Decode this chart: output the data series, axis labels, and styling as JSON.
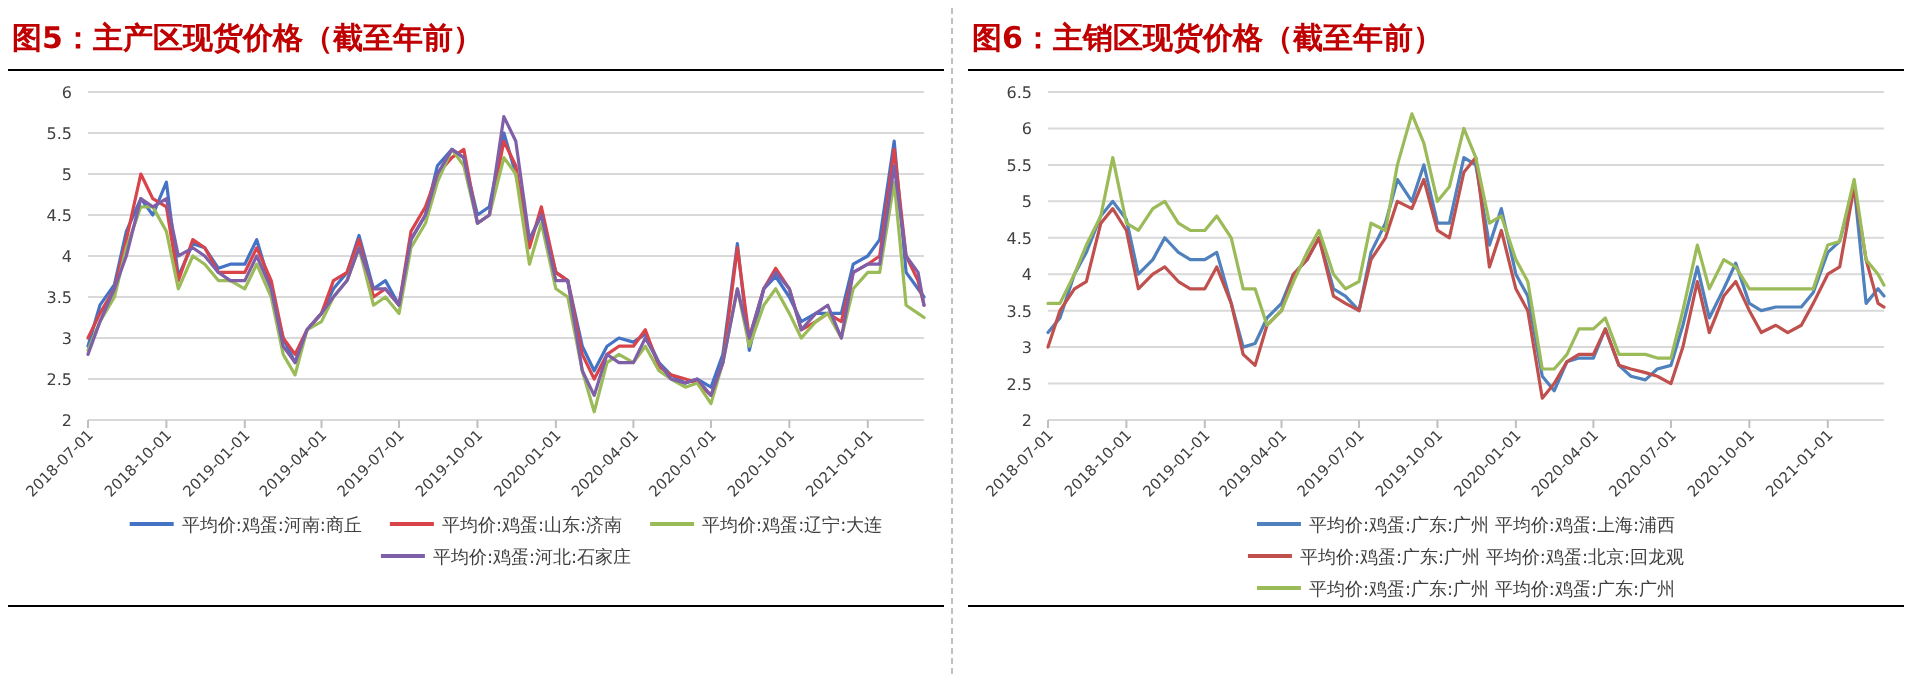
{
  "chart_data": [
    {
      "type": "line",
      "title": "图5：主产区现货价格（截至年前）",
      "grid": "y",
      "legend": "bottom",
      "x": [
        "2018-07-01",
        "2018-07-15",
        "2018-08-01",
        "2018-08-15",
        "2018-09-01",
        "2018-09-15",
        "2018-10-01",
        "2018-10-15",
        "2018-11-01",
        "2018-11-15",
        "2018-12-01",
        "2018-12-15",
        "2019-01-01",
        "2019-01-15",
        "2019-02-01",
        "2019-02-15",
        "2019-03-01",
        "2019-03-15",
        "2019-04-01",
        "2019-04-15",
        "2019-05-01",
        "2019-05-15",
        "2019-06-01",
        "2019-06-15",
        "2019-07-01",
        "2019-07-15",
        "2019-08-01",
        "2019-08-15",
        "2019-09-01",
        "2019-09-15",
        "2019-10-01",
        "2019-10-15",
        "2019-11-01",
        "2019-11-15",
        "2019-12-01",
        "2019-12-15",
        "2020-01-01",
        "2020-01-15",
        "2020-02-01",
        "2020-02-15",
        "2020-03-01",
        "2020-03-15",
        "2020-04-01",
        "2020-04-15",
        "2020-05-01",
        "2020-05-15",
        "2020-06-01",
        "2020-06-15",
        "2020-07-01",
        "2020-07-15",
        "2020-08-01",
        "2020-08-15",
        "2020-09-01",
        "2020-09-15",
        "2020-10-01",
        "2020-10-15",
        "2020-11-01",
        "2020-11-15",
        "2020-12-01",
        "2020-12-15",
        "2021-01-01",
        "2021-01-15",
        "2021-02-01",
        "2021-02-15",
        "2021-03-01",
        "2021-03-08"
      ],
      "xlim": [
        "2018-07-01",
        "2021-03-08"
      ],
      "xticks": [
        "2018-07-01",
        "2018-10-01",
        "2019-01-01",
        "2019-04-01",
        "2019-07-01",
        "2019-10-01",
        "2020-01-01",
        "2020-04-01",
        "2020-07-01",
        "2020-10-01",
        "2021-01-01"
      ],
      "ylim": [
        2,
        6
      ],
      "yticks": [
        2,
        2.5,
        3,
        3.5,
        4,
        4.5,
        5,
        5.5,
        6
      ],
      "series": [
        {
          "name": "平均价:鸡蛋:河南:商丘",
          "color": "#4472c4",
          "values": [
            2.9,
            3.4,
            3.65,
            4.3,
            4.7,
            4.5,
            4.9,
            3.75,
            4.15,
            4.1,
            3.85,
            3.9,
            3.9,
            4.2,
            3.6,
            3.0,
            2.7,
            3.1,
            3.3,
            3.6,
            3.8,
            4.25,
            3.6,
            3.7,
            3.4,
            4.2,
            4.5,
            5.1,
            5.3,
            5.2,
            4.5,
            4.6,
            5.5,
            5.0,
            4.2,
            4.5,
            3.8,
            3.7,
            2.9,
            2.6,
            2.9,
            3.0,
            2.95,
            3.05,
            2.7,
            2.55,
            2.45,
            2.5,
            2.4,
            2.8,
            4.15,
            2.85,
            3.6,
            3.75,
            3.5,
            3.2,
            3.3,
            3.3,
            3.3,
            3.9,
            4.0,
            4.2,
            5.4,
            3.8,
            3.6,
            3.5
          ]
        },
        {
          "name": "平均价:鸡蛋:山东:济南",
          "color": "#d9444a",
          "values": [
            3.0,
            3.3,
            3.6,
            4.2,
            5.0,
            4.7,
            4.6,
            3.7,
            4.2,
            4.1,
            3.8,
            3.8,
            3.8,
            4.1,
            3.7,
            3.0,
            2.8,
            3.1,
            3.3,
            3.7,
            3.8,
            4.2,
            3.5,
            3.6,
            3.4,
            4.3,
            4.6,
            5.0,
            5.2,
            5.3,
            4.4,
            4.5,
            5.4,
            5.1,
            4.1,
            4.6,
            3.8,
            3.7,
            2.8,
            2.5,
            2.8,
            2.9,
            2.9,
            3.1,
            2.65,
            2.55,
            2.5,
            2.45,
            2.3,
            2.7,
            4.1,
            3.0,
            3.6,
            3.85,
            3.6,
            3.1,
            3.2,
            3.3,
            3.2,
            3.8,
            3.9,
            4.0,
            5.3,
            4.0,
            3.7,
            3.4
          ]
        },
        {
          "name": "平均价:鸡蛋:辽宁:大连",
          "color": "#9bbb59",
          "values": [
            2.85,
            3.2,
            3.5,
            4.1,
            4.6,
            4.6,
            4.3,
            3.6,
            4.0,
            3.9,
            3.7,
            3.7,
            3.6,
            3.9,
            3.5,
            2.8,
            2.55,
            3.1,
            3.2,
            3.5,
            3.7,
            4.1,
            3.4,
            3.5,
            3.3,
            4.1,
            4.4,
            4.9,
            5.3,
            5.1,
            4.4,
            4.5,
            5.2,
            5.0,
            3.9,
            4.4,
            3.6,
            3.5,
            2.6,
            2.1,
            2.7,
            2.8,
            2.7,
            2.9,
            2.6,
            2.5,
            2.4,
            2.45,
            2.2,
            2.7,
            3.6,
            2.9,
            3.4,
            3.6,
            3.3,
            3.0,
            3.2,
            3.3,
            3.0,
            3.6,
            3.8,
            3.8,
            4.9,
            3.4,
            3.3,
            3.25
          ]
        },
        {
          "name": "平均价:鸡蛋:河北:石家庄",
          "color": "#7e5fa8",
          "values": [
            2.8,
            3.2,
            3.6,
            4.0,
            4.7,
            4.6,
            4.7,
            4.0,
            4.1,
            4.0,
            3.8,
            3.7,
            3.7,
            4.0,
            3.6,
            2.9,
            2.7,
            3.1,
            3.3,
            3.5,
            3.7,
            4.1,
            3.6,
            3.6,
            3.4,
            4.2,
            4.5,
            5.0,
            5.3,
            5.2,
            4.4,
            4.5,
            5.7,
            5.4,
            4.2,
            4.5,
            3.7,
            3.7,
            2.6,
            2.3,
            2.8,
            2.7,
            2.7,
            3.0,
            2.7,
            2.5,
            2.45,
            2.5,
            2.3,
            2.7,
            3.6,
            3.0,
            3.6,
            3.8,
            3.6,
            3.1,
            3.3,
            3.4,
            3.0,
            3.8,
            3.9,
            3.9,
            5.1,
            4.0,
            3.8,
            3.4
          ]
        }
      ]
    },
    {
      "type": "line",
      "title": "图6：主销区现货价格（截至年前）",
      "grid": "y",
      "legend": "bottom",
      "x": [
        "2018-07-01",
        "2018-07-15",
        "2018-08-01",
        "2018-08-15",
        "2018-09-01",
        "2018-09-15",
        "2018-10-01",
        "2018-10-15",
        "2018-11-01",
        "2018-11-15",
        "2018-12-01",
        "2018-12-15",
        "2019-01-01",
        "2019-01-15",
        "2019-02-01",
        "2019-02-15",
        "2019-03-01",
        "2019-03-15",
        "2019-04-01",
        "2019-04-15",
        "2019-05-01",
        "2019-05-15",
        "2019-06-01",
        "2019-06-15",
        "2019-07-01",
        "2019-07-15",
        "2019-08-01",
        "2019-08-15",
        "2019-09-01",
        "2019-09-15",
        "2019-10-01",
        "2019-10-15",
        "2019-11-01",
        "2019-11-15",
        "2019-12-01",
        "2019-12-15",
        "2020-01-01",
        "2020-01-15",
        "2020-02-01",
        "2020-02-15",
        "2020-03-01",
        "2020-03-15",
        "2020-04-01",
        "2020-04-15",
        "2020-05-01",
        "2020-05-15",
        "2020-06-01",
        "2020-06-15",
        "2020-07-01",
        "2020-07-15",
        "2020-08-01",
        "2020-08-15",
        "2020-09-01",
        "2020-09-15",
        "2020-10-01",
        "2020-10-15",
        "2020-11-01",
        "2020-11-15",
        "2020-12-01",
        "2020-12-15",
        "2021-01-01",
        "2021-01-15",
        "2021-02-01",
        "2021-02-15",
        "2021-03-01",
        "2021-03-08"
      ],
      "xlim": [
        "2018-07-01",
        "2021-03-08"
      ],
      "xticks": [
        "2018-07-01",
        "2018-10-01",
        "2019-01-01",
        "2019-04-01",
        "2019-07-01",
        "2019-10-01",
        "2020-01-01",
        "2020-04-01",
        "2020-07-01",
        "2020-10-01",
        "2021-01-01"
      ],
      "ylim": [
        2,
        6.5
      ],
      "yticks": [
        2,
        2.5,
        3,
        3.5,
        4,
        4.5,
        5,
        5.5,
        6,
        6.5
      ],
      "series": [
        {
          "name": "平均价:鸡蛋:广东:广州 平均价:鸡蛋:上海:浦西",
          "color": "#4f81bd",
          "values": [
            3.2,
            3.4,
            4.0,
            4.3,
            4.8,
            5.0,
            4.75,
            4.0,
            4.2,
            4.5,
            4.3,
            4.2,
            4.2,
            4.3,
            3.6,
            3.0,
            3.05,
            3.4,
            3.6,
            4.0,
            4.2,
            4.5,
            3.8,
            3.7,
            3.5,
            4.3,
            4.7,
            5.3,
            5.0,
            5.5,
            4.7,
            4.7,
            5.6,
            5.5,
            4.4,
            4.9,
            4.0,
            3.7,
            2.6,
            2.4,
            2.8,
            2.85,
            2.85,
            3.25,
            2.75,
            2.6,
            2.55,
            2.7,
            2.75,
            3.3,
            4.1,
            3.4,
            3.8,
            4.15,
            3.6,
            3.5,
            3.55,
            3.55,
            3.55,
            3.75,
            4.3,
            4.45,
            5.2,
            3.6,
            3.8,
            3.7
          ]
        },
        {
          "name": "平均价:鸡蛋:广东:广州 平均价:鸡蛋:北京:回龙观",
          "color": "#c0504d",
          "values": [
            3.0,
            3.5,
            3.8,
            3.9,
            4.7,
            4.9,
            4.6,
            3.8,
            4.0,
            4.1,
            3.9,
            3.8,
            3.8,
            4.1,
            3.6,
            2.9,
            2.75,
            3.3,
            3.5,
            4.0,
            4.2,
            4.5,
            3.7,
            3.6,
            3.5,
            4.2,
            4.5,
            5.0,
            4.9,
            5.3,
            4.6,
            4.5,
            5.4,
            5.6,
            4.1,
            4.6,
            3.8,
            3.5,
            2.3,
            2.5,
            2.8,
            2.9,
            2.9,
            3.25,
            2.75,
            2.7,
            2.65,
            2.6,
            2.5,
            3.0,
            3.9,
            3.2,
            3.7,
            3.9,
            3.5,
            3.2,
            3.3,
            3.2,
            3.3,
            3.6,
            4.0,
            4.1,
            5.2,
            4.2,
            3.6,
            3.55
          ]
        },
        {
          "name": "平均价:鸡蛋:广东:广州 平均价:鸡蛋:广东:广州",
          "color": "#9bbb59",
          "values": [
            3.6,
            3.6,
            4.0,
            4.4,
            4.8,
            5.6,
            4.7,
            4.6,
            4.9,
            5.0,
            4.7,
            4.6,
            4.6,
            4.8,
            4.5,
            3.8,
            3.8,
            3.3,
            3.5,
            3.9,
            4.3,
            4.6,
            4.0,
            3.8,
            3.9,
            4.7,
            4.6,
            5.5,
            6.2,
            5.8,
            5.0,
            5.2,
            6.0,
            5.6,
            4.7,
            4.8,
            4.2,
            3.9,
            2.7,
            2.7,
            2.9,
            3.25,
            3.25,
            3.4,
            2.9,
            2.9,
            2.9,
            2.85,
            2.85,
            3.5,
            4.4,
            3.8,
            4.2,
            4.1,
            3.8,
            3.8,
            3.8,
            3.8,
            3.8,
            3.8,
            4.4,
            4.45,
            5.3,
            4.2,
            4.0,
            3.85
          ]
        }
      ]
    }
  ]
}
